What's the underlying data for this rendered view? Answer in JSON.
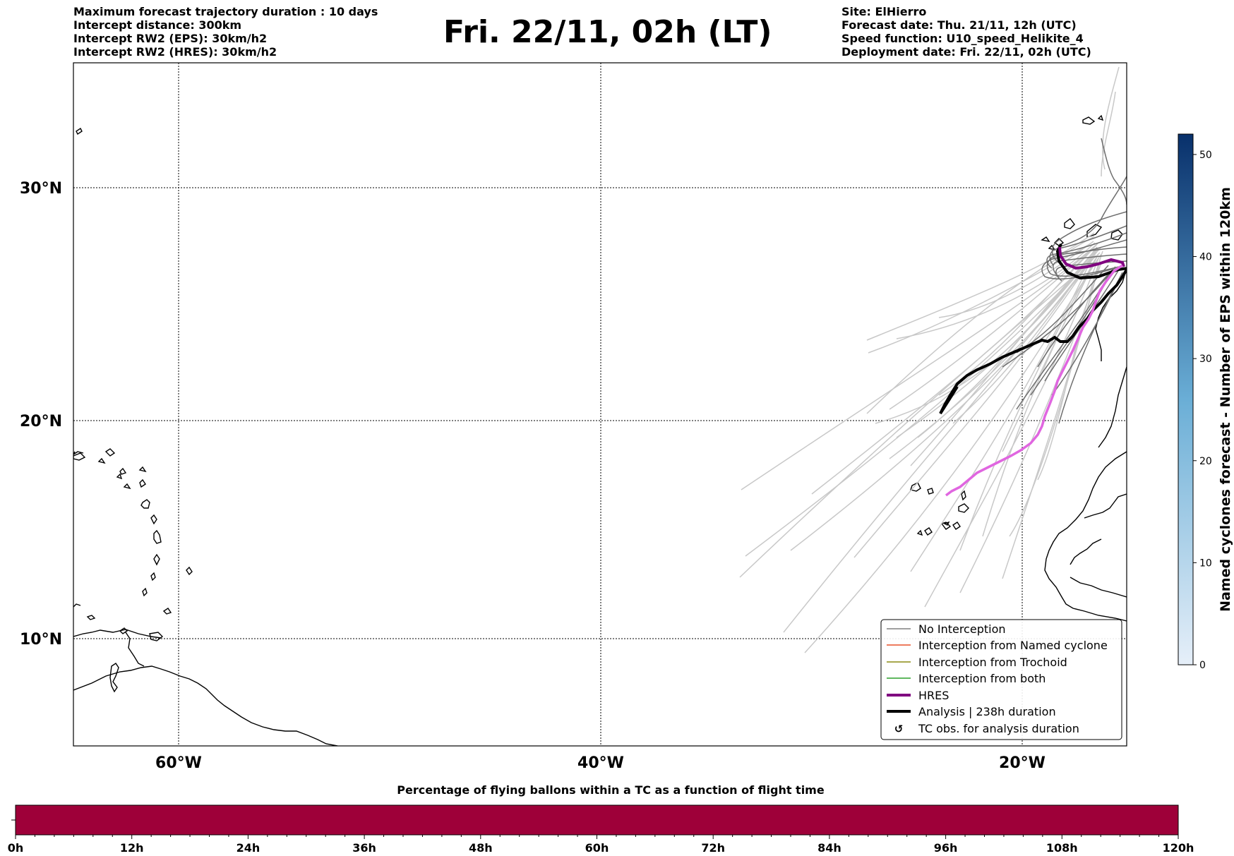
{
  "header": {
    "left_lines": [
      "Maximum forecast trajectory duration : 10 days",
      "Intercept distance: 300km",
      "Intercept RW2 (EPS):  30km/h2",
      "Intercept RW2 (HRES): 30km/h2"
    ],
    "right_lines": [
      "Site: ElHierro",
      "Forecast date: Thu. 21/11, 12h (UTC)",
      "Speed function: U10_speed_Helikite_4",
      "Deployment date: Fri. 22/11, 02h (UTC)"
    ],
    "title": "Fri. 22/11, 02h (LT)"
  },
  "map": {
    "lon_ticks": [
      "60°W",
      "40°W",
      "20°W"
    ],
    "lat_ticks": [
      "30°N",
      "20°N",
      "10°N"
    ],
    "colors": {
      "no_interception": "#808080",
      "named_cyclone": "#e8502a",
      "trochoid": "#8c8c14",
      "both": "#2ca02c",
      "hres": "#800080",
      "hres_tail": "#e066e0",
      "analysis": "#000000"
    }
  },
  "legend": {
    "items": [
      "No Interception",
      "Interception from Named cyclone",
      "Interception from Trochoid",
      "Interception from both",
      "HRES",
      "Analysis | 238h duration",
      "TC obs. for analysis duration"
    ]
  },
  "colorbar": {
    "label": "Named cyclones forecast - Number of EPS within 120km",
    "ticks": [
      "0",
      "10",
      "20",
      "30",
      "40",
      "50"
    ],
    "min": 0,
    "max": 52,
    "color_low": "#e6eff9",
    "color_high": "#08306b"
  },
  "timebar": {
    "title": "Percentage of flying ballons within a TC as a function of flight time",
    "ticks": [
      "0h",
      "12h",
      "24h",
      "36h",
      "48h",
      "60h",
      "72h",
      "84h",
      "96h",
      "108h",
      "120h"
    ],
    "fill_color": "#9e0039",
    "percentage": 0
  }
}
